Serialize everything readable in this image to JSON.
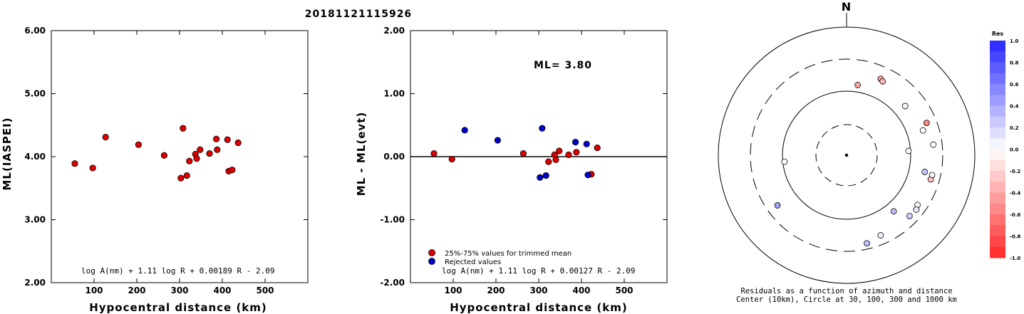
{
  "title": "20181121115926",
  "chart_data": [
    {
      "type": "scatter",
      "title": "",
      "xlabel": "Hypocentral distance (km)",
      "ylabel": "ML(IASPEI)",
      "xlim": [
        0,
        600
      ],
      "ylim": [
        2.0,
        6.0
      ],
      "xticks": [
        "100",
        "200",
        "300",
        "400",
        "500"
      ],
      "yticks": [
        "2.00",
        "3.00",
        "4.00",
        "5.00",
        "6.00"
      ],
      "formula": "log A(nm) + 1.11 log R + 0.00189 R - 2.09",
      "color": "#dd0000",
      "points": [
        {
          "x": 55,
          "y": 3.89
        },
        {
          "x": 97,
          "y": 3.82
        },
        {
          "x": 127,
          "y": 4.31
        },
        {
          "x": 204,
          "y": 4.19
        },
        {
          "x": 264,
          "y": 4.02
        },
        {
          "x": 303,
          "y": 3.66
        },
        {
          "x": 308,
          "y": 4.45
        },
        {
          "x": 317,
          "y": 3.7
        },
        {
          "x": 323,
          "y": 3.93
        },
        {
          "x": 337,
          "y": 4.04
        },
        {
          "x": 340,
          "y": 3.97
        },
        {
          "x": 348,
          "y": 4.11
        },
        {
          "x": 370,
          "y": 4.05
        },
        {
          "x": 386,
          "y": 4.28
        },
        {
          "x": 388,
          "y": 4.11
        },
        {
          "x": 412,
          "y": 4.27
        },
        {
          "x": 415,
          "y": 3.77
        },
        {
          "x": 423,
          "y": 3.79
        },
        {
          "x": 437,
          "y": 4.22
        }
      ]
    },
    {
      "type": "scatter",
      "title": "",
      "xlabel": "Hypocentral distance (km)",
      "ylabel": "ML - ML(evt)",
      "xlim": [
        0,
        600
      ],
      "ylim": [
        -2.0,
        2.0
      ],
      "xticks": [
        "100",
        "200",
        "300",
        "400",
        "500"
      ],
      "yticks": [
        "-2.00",
        "-1.00",
        "0.00",
        "1.00",
        "2.00"
      ],
      "ml_label": "ML= 3.80",
      "formula": "log A(nm) + 1.11 log R + 0.00127 R - 2.09",
      "legend": [
        "25%-75% values for trimmed mean",
        "Rejected values"
      ],
      "series": [
        {
          "name": "25%-75% values for trimmed mean",
          "color": "#dd0000",
          "points": [
            {
              "x": 55,
              "y": 0.05
            },
            {
              "x": 97,
              "y": -0.04
            },
            {
              "x": 264,
              "y": 0.05
            },
            {
              "x": 323,
              "y": -0.08
            },
            {
              "x": 337,
              "y": 0.03
            },
            {
              "x": 340,
              "y": -0.05
            },
            {
              "x": 348,
              "y": 0.09
            },
            {
              "x": 370,
              "y": 0.03
            },
            {
              "x": 388,
              "y": 0.07
            },
            {
              "x": 423,
              "y": -0.28
            },
            {
              "x": 437,
              "y": 0.14
            }
          ]
        },
        {
          "name": "Rejected values",
          "color": "#0000cc",
          "points": [
            {
              "x": 127,
              "y": 0.42
            },
            {
              "x": 204,
              "y": 0.26
            },
            {
              "x": 303,
              "y": -0.33
            },
            {
              "x": 308,
              "y": 0.45
            },
            {
              "x": 317,
              "y": -0.3
            },
            {
              "x": 386,
              "y": 0.23
            },
            {
              "x": 412,
              "y": 0.2
            },
            {
              "x": 415,
              "y": -0.29
            }
          ]
        }
      ]
    },
    {
      "type": "scatter",
      "subtype": "polar residual map",
      "north_label": "N",
      "caption": [
        "Residuals as a function of azimuth and distance",
        "Center (10km), Circle at 30, 100, 300 and 1000 km"
      ],
      "rings_km": [
        30,
        100,
        300,
        1000
      ],
      "colorbar": {
        "title": "Res",
        "ticks": [
          "1.0",
          "0.8",
          "0.6",
          "0.4",
          "0.2",
          "0.0",
          "-0.2",
          "-0.4",
          "-0.6",
          "-0.8",
          "-1.0"
        ]
      },
      "stations": [
        {
          "azimuth": 9,
          "distance_km": 127,
          "residual": -0.42
        },
        {
          "azimuth": 24,
          "distance_km": 196,
          "residual": -0.45
        },
        {
          "azimuth": 26,
          "distance_km": 186,
          "residual": -0.34
        },
        {
          "azimuth": 50,
          "distance_km": 153,
          "residual": 0.03
        },
        {
          "azimuth": 72,
          "distance_km": 174,
          "residual": 0.0
        },
        {
          "azimuth": 68,
          "distance_km": 214,
          "residual": -0.55
        },
        {
          "azimuth": 83,
          "distance_km": 222,
          "residual": 0.01
        },
        {
          "azimuth": 86,
          "distance_km": 93,
          "residual": 0.0
        },
        {
          "azimuth": 102,
          "distance_km": 172,
          "residual": 0.26
        },
        {
          "azimuth": 106,
          "distance_km": 223,
          "residual": -0.28
        },
        {
          "azimuth": 103,
          "distance_km": 225,
          "residual": 0.05
        },
        {
          "azimuth": 125,
          "distance_km": 216,
          "residual": 0.05
        },
        {
          "azimuth": 128,
          "distance_km": 231,
          "residual": 0.09
        },
        {
          "azimuth": 134,
          "distance_km": 223,
          "residual": 0.23
        },
        {
          "azimuth": 140,
          "distance_km": 137,
          "residual": 0.3
        },
        {
          "azimuth": 157,
          "distance_km": 220,
          "residual": 0.07
        },
        {
          "azimuth": 167,
          "distance_km": 246,
          "residual": 0.29
        },
        {
          "azimuth": 264,
          "distance_km": 94,
          "residual": 0.0
        },
        {
          "azimuth": 234,
          "distance_km": 207,
          "residual": 0.43
        }
      ]
    }
  ]
}
